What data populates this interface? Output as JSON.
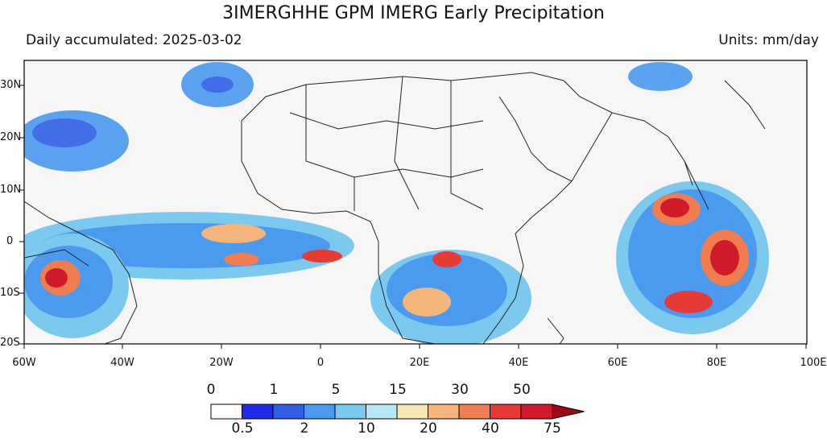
{
  "title": "3IMERGHHE GPM IMERG Early Precipitation",
  "subtitle_left": "Daily accumulated: 2025-03-02",
  "subtitle_right": "Units: mm/day",
  "lon_labels": [
    "60W",
    "40W",
    "20W",
    "0",
    "20E",
    "40E",
    "60E",
    "80E",
    "100E"
  ],
  "lat_labels": [
    "30N",
    "20N",
    "10N",
    "0",
    "10S",
    "20S"
  ],
  "colorbar": {
    "top_labels": [
      "0",
      "1",
      "5",
      "15",
      "30",
      "50"
    ],
    "bottom_labels": [
      "0.5",
      "2",
      "10",
      "20",
      "40",
      "75"
    ],
    "colors": [
      "#ffffff",
      "#1f2be8",
      "#2f5fe6",
      "#4a9af0",
      "#7cc9ef",
      "#b8e8f6",
      "#f6e7b2",
      "#f5b57a",
      "#ef7d4f",
      "#e63a35",
      "#cf1b2a",
      "#9b0a14"
    ]
  }
}
